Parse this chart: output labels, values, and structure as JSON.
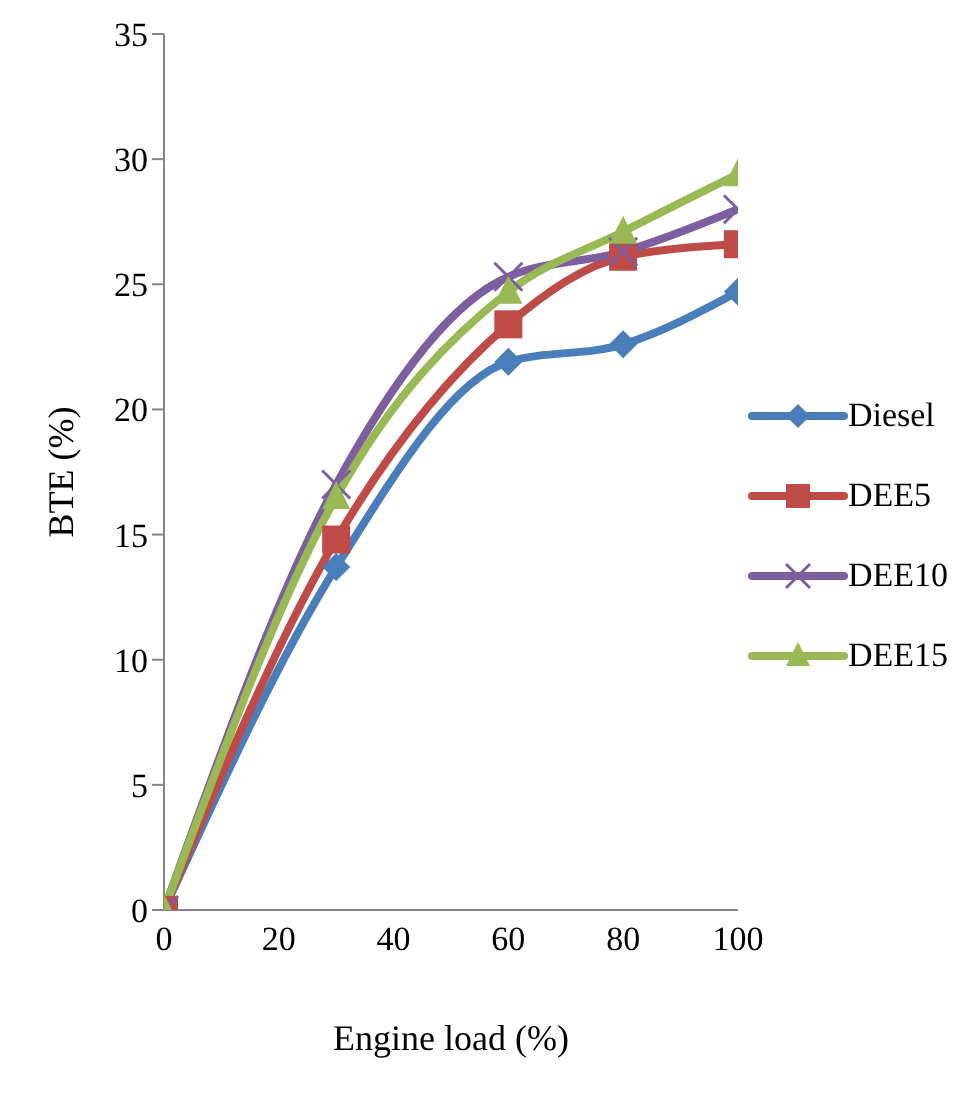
{
  "chart_data": {
    "type": "line",
    "xlabel": "Engine load (%)",
    "ylabel": "BTE (%)",
    "x": [
      0,
      30,
      60,
      80,
      100
    ],
    "xlim": [
      0,
      100
    ],
    "xticks": [
      0,
      20,
      40,
      60,
      80,
      100
    ],
    "ylim": [
      0,
      35
    ],
    "yticks": [
      0,
      5,
      10,
      15,
      20,
      25,
      30,
      35
    ],
    "grid": false,
    "legend": "right",
    "series": [
      {
        "name": "Diesel",
        "color": "#4a7ebb",
        "marker": "diamond",
        "values": [
          0,
          13.7,
          21.9,
          22.6,
          24.7
        ]
      },
      {
        "name": "DEE5",
        "color": "#be4b48",
        "marker": "square",
        "values": [
          0,
          14.8,
          23.4,
          26.1,
          26.6
        ]
      },
      {
        "name": "DEE10",
        "color": "#7d5fa0",
        "marker": "cross",
        "values": [
          0,
          17.0,
          25.3,
          26.3,
          28.0
        ]
      },
      {
        "name": "DEE15",
        "color": "#98b954",
        "marker": "triangle",
        "values": [
          0,
          16.5,
          24.7,
          27.1,
          29.4
        ]
      }
    ]
  }
}
